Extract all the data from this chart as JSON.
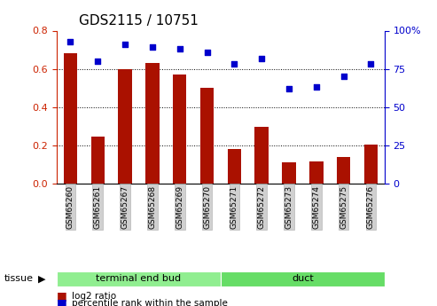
{
  "title": "GDS2115 / 10751",
  "categories": [
    "GSM65260",
    "GSM65261",
    "GSM65267",
    "GSM65268",
    "GSM65269",
    "GSM65270",
    "GSM65271",
    "GSM65272",
    "GSM65273",
    "GSM65274",
    "GSM65275",
    "GSM65276"
  ],
  "log2_ratio": [
    0.68,
    0.245,
    0.6,
    0.63,
    0.57,
    0.5,
    0.18,
    0.295,
    0.11,
    0.115,
    0.14,
    0.205
  ],
  "percentile_rank": [
    93,
    80,
    91,
    89,
    88,
    86,
    78,
    82,
    62,
    63,
    70,
    78
  ],
  "bar_color": "#aa1100",
  "dot_color": "#0000cc",
  "ylim_left": [
    0,
    0.8
  ],
  "ylim_right": [
    0,
    100
  ],
  "yticks_left": [
    0,
    0.2,
    0.4,
    0.6,
    0.8
  ],
  "yticks_right": [
    0,
    25,
    50,
    75,
    100
  ],
  "ytick_labels_right": [
    "0",
    "25",
    "50",
    "75",
    "100%"
  ],
  "group1_label": "terminal end bud",
  "group2_label": "duct",
  "group1_color": "#90EE90",
  "group2_color": "#66DD66",
  "tissue_label": "tissue",
  "legend_bar_label": "log2 ratio",
  "legend_dot_label": "percentile rank within the sample",
  "xticklabel_bg": "#d0d0d0",
  "grid_color": "black",
  "left_tick_color": "#cc2200",
  "right_tick_color": "#0000cc",
  "fig_width": 4.93,
  "fig_height": 3.45
}
